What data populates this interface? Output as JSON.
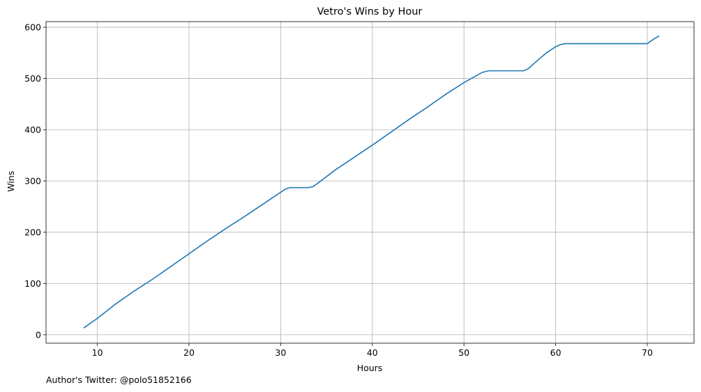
{
  "footer": "Author's Twitter: @polo51852166",
  "chart_data": {
    "type": "line",
    "title": "Vetro's Wins by Hour",
    "xlabel": "Hours",
    "ylabel": "Wins",
    "xlim": [
      4.4,
      75.1
    ],
    "ylim": [
      -16.5,
      611
    ],
    "xticks": [
      10,
      20,
      30,
      40,
      50,
      60,
      70
    ],
    "yticks": [
      0,
      100,
      200,
      300,
      400,
      500,
      600
    ],
    "grid": true,
    "colors": {
      "line": "#1f77b4",
      "grid": "#b0b0b0"
    },
    "series": [
      {
        "x": [
          8.5,
          10.0,
          12.0,
          14.0,
          16.0,
          18.0,
          20.0,
          22.0,
          24.0,
          26.0,
          28.0,
          29.5,
          30.5,
          31.0,
          32.0,
          33.0,
          33.5,
          34.0,
          36.0,
          38.0,
          40.0,
          42.0,
          44.0,
          46.0,
          48.0,
          50.0,
          52.0,
          52.7,
          53.0,
          54.0,
          55.0,
          56.0,
          56.5,
          57.0,
          58.0,
          59.0,
          60.0,
          60.5,
          61.0,
          62.0,
          64.0,
          66.0,
          68.0,
          70.0,
          70.3,
          70.8,
          71.3
        ],
        "y": [
          13,
          32,
          60,
          85,
          108,
          133,
          158,
          183,
          207,
          230,
          254,
          272,
          284,
          287,
          287,
          287,
          289,
          295,
          322,
          346,
          370,
          395,
          420,
          444,
          469,
          492,
          512,
          515,
          515,
          515,
          515,
          515,
          515,
          519,
          535,
          550,
          562,
          566,
          568,
          568,
          568,
          568,
          568,
          568,
          572,
          578,
          583
        ]
      }
    ]
  }
}
